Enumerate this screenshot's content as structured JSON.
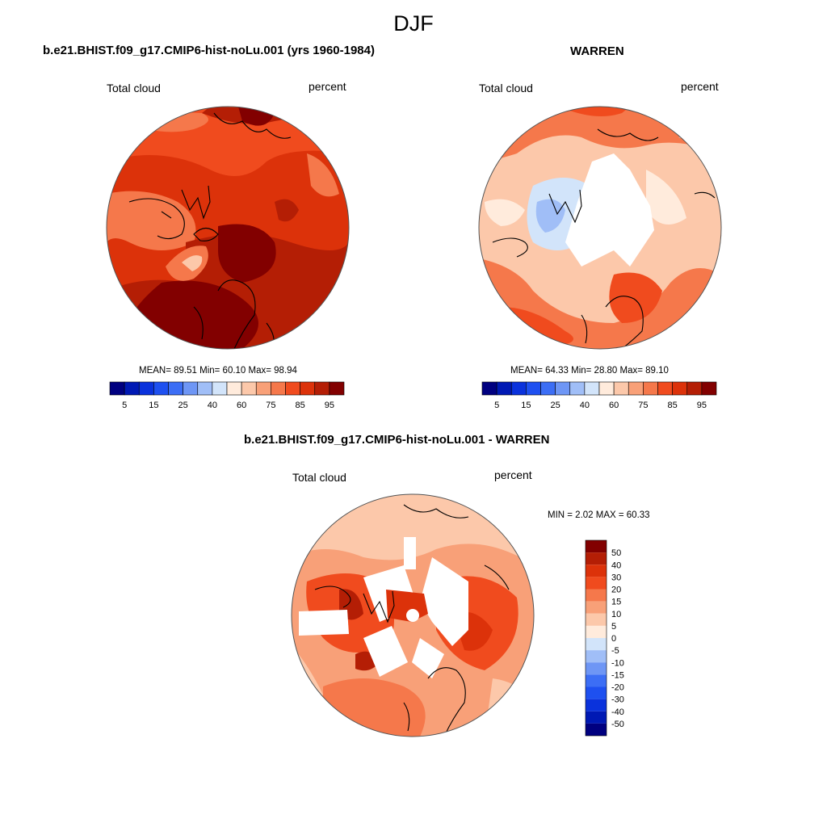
{
  "figure": {
    "title": "DJF"
  },
  "colors": {
    "palette": [
      "#000080",
      "#0019b4",
      "#0a32dc",
      "#1e50f0",
      "#3c6ef5",
      "#6e96f5",
      "#a0beF7",
      "#d2e4fa",
      "#ffebdc",
      "#fcc8aa",
      "#f8a078",
      "#f5784b",
      "#f04b1e",
      "#dc320a",
      "#b41e05",
      "#820000"
    ],
    "land_outline": "#000000",
    "rim": "#555555"
  },
  "panels": [
    {
      "id": "model",
      "title": "b.e21.BHIST.f09_g17.CMIP6-hist-noLu.001 (yrs 1960-1984)",
      "left_label": "Total cloud",
      "right_label": "percent",
      "stats": "MEAN=  89.51  Min=  60.10  Max=  98.94",
      "colorbar": {
        "orientation": "horizontal",
        "tick_labels": [
          "5",
          "15",
          "25",
          "40",
          "60",
          "75",
          "85",
          "95"
        ]
      }
    },
    {
      "id": "obs",
      "title": "WARREN",
      "left_label": "Total cloud",
      "right_label": "percent",
      "stats": "MEAN=  64.33  Min=  28.80  Max=  89.10",
      "colorbar": {
        "orientation": "horizontal",
        "tick_labels": [
          "5",
          "15",
          "25",
          "40",
          "60",
          "75",
          "85",
          "95"
        ]
      }
    },
    {
      "id": "diff",
      "title": "b.e21.BHIST.f09_g17.CMIP6-hist-noLu.001 - WARREN",
      "left_label": "Total cloud",
      "right_label": "percent",
      "stats": "MIN =   2.02 MAX =  60.33",
      "colorbar": {
        "orientation": "vertical",
        "tick_labels": [
          "50",
          "40",
          "30",
          "20",
          "15",
          "10",
          "5",
          "0",
          "-5",
          "-10",
          "-15",
          "-20",
          "-30",
          "-40",
          "-50"
        ]
      }
    }
  ]
}
